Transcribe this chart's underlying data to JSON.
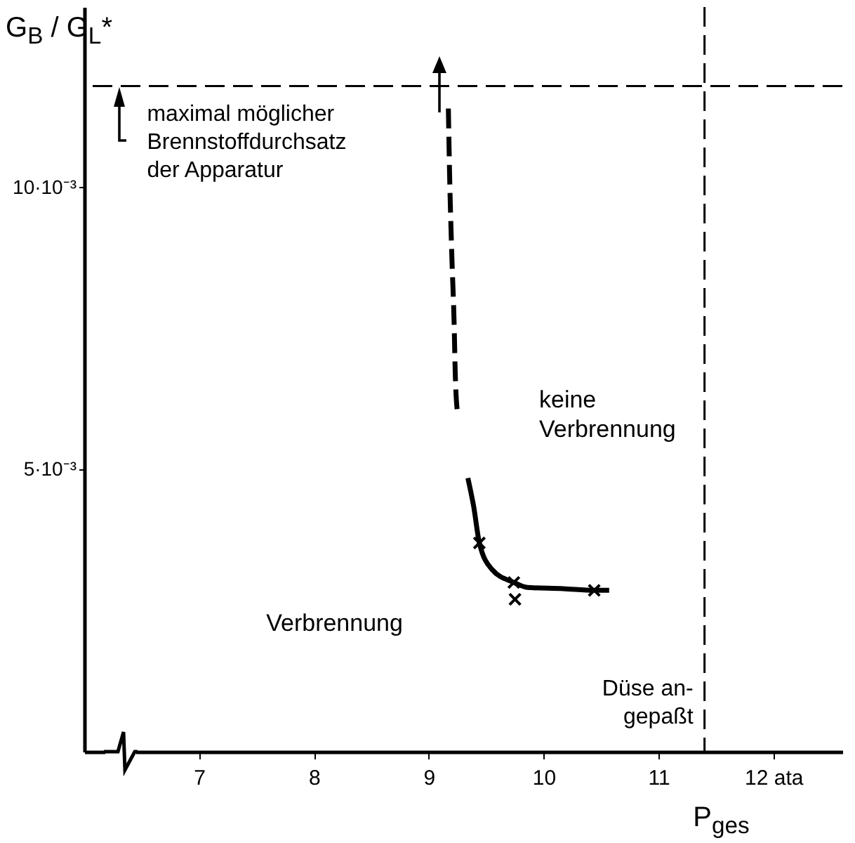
{
  "chart_data": {
    "type": "line",
    "xlabel": "P$_{ges}$",
    "ylabel": "G$_{B}$ / G$_{L}$*",
    "xlim": [
      6,
      12.6
    ],
    "ylim": [
      0,
      0.0132
    ],
    "xticks": [
      7,
      8,
      9,
      10,
      11,
      {
        "value": 12,
        "label": "12  ata"
      }
    ],
    "yticks": [
      {
        "value": 0.005,
        "label": "5·10⁻³"
      },
      {
        "value": 0.01,
        "label": "10·10⁻³"
      }
    ],
    "series": [
      {
        "line_style": "dashed",
        "color": "#000000",
        "x": [
          9.17,
          9.18,
          9.2,
          9.22,
          9.23,
          9.25
        ],
        "values": [
          0.0114,
          0.0103,
          0.0088,
          0.0076,
          0.0067,
          0.006
        ]
      },
      {
        "line_style": "solid",
        "color": "#000000",
        "x": [
          9.34,
          9.39,
          9.44,
          9.55,
          9.74,
          9.86,
          10.17,
          10.44,
          10.57
        ],
        "values": [
          0.00485,
          0.00435,
          0.0037,
          0.00323,
          0.003,
          0.00291,
          0.00289,
          0.00286,
          0.00286
        ]
      },
      {
        "type": "scatter",
        "marker": "cross",
        "color": "#000000",
        "x": [
          9.44,
          9.74,
          9.75,
          10.44
        ],
        "values": [
          0.0037,
          0.003,
          0.0027,
          0.00286
        ]
      }
    ],
    "ref_lines": [
      {
        "axis": "y",
        "value": 0.0118,
        "line_style": "dashed",
        "color": "#000000"
      },
      {
        "axis": "x",
        "value": 11.4,
        "line_style": "dashed",
        "color": "#000000"
      }
    ],
    "annotations": [
      {
        "text": "maximal möglicher\nBrennstoffdurchsatz\nder Apparatur",
        "x": 6.4,
        "y": 0.0118
      },
      {
        "text": "Düse an-\ngepaßt",
        "x": 11.4,
        "y": 0.0008
      },
      "keine\nVerbrennung",
      "Verbrennung"
    ]
  }
}
